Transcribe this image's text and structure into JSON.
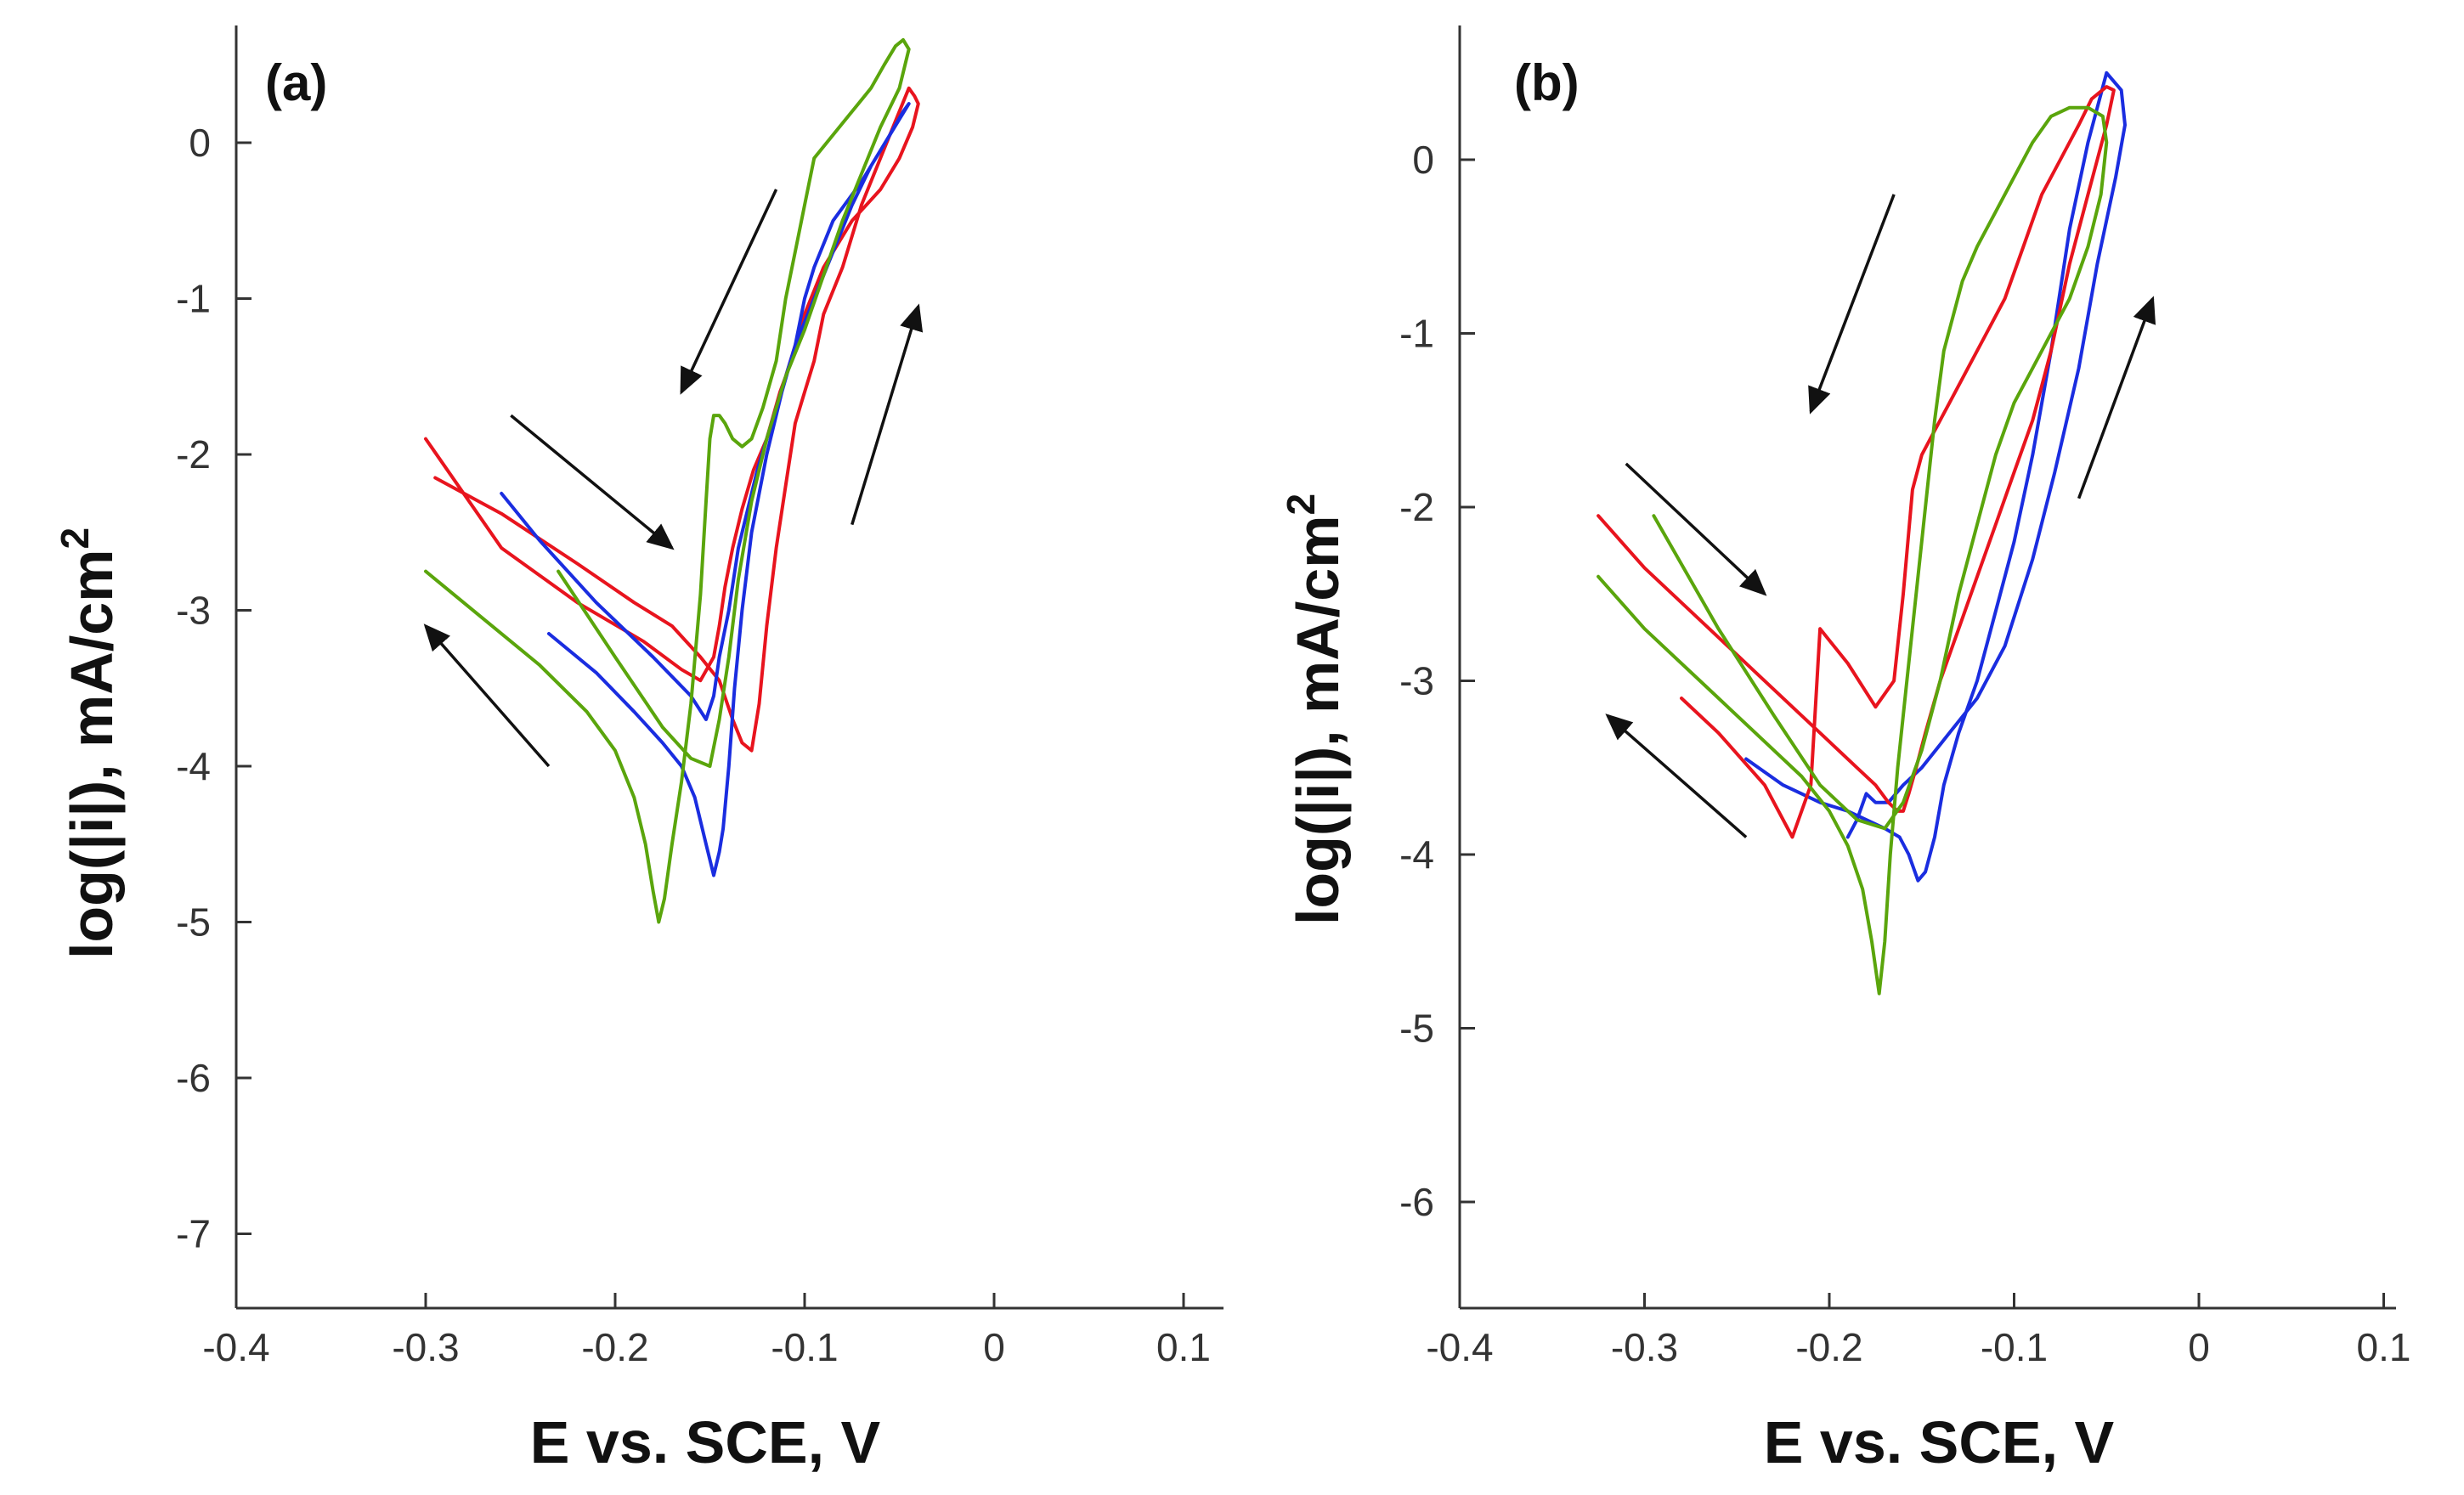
{
  "chart_data": [
    {
      "type": "line",
      "panel_label": "(a)",
      "xlabel": "E vs. SCE, V",
      "ylabel": "log(|i|), mA/cm",
      "ylabel_superscript": "2",
      "xlim": [
        -0.4,
        0.12
      ],
      "ylim": [
        -7.5,
        0.7
      ],
      "xticks": [
        -0.4,
        -0.3,
        -0.2,
        -0.1,
        0,
        0.1
      ],
      "xtick_labels": [
        "-0.4",
        "-0.3",
        "-0.2",
        "-0.1",
        "0",
        "0.1"
      ],
      "yticks": [
        0,
        -1,
        -2,
        -3,
        -4,
        -5,
        -6,
        -7
      ],
      "ytick_labels": [
        "0",
        "-1",
        "-2",
        "-3",
        "-4",
        "-5",
        "-6",
        "-7"
      ],
      "grid": false,
      "series": [
        {
          "color": "#e8141e",
          "x": [
            -0.295,
            -0.26,
            -0.22,
            -0.19,
            -0.17,
            -0.155,
            -0.145,
            -0.138,
            -0.133,
            -0.128,
            -0.124,
            -0.12,
            -0.115,
            -0.11,
            -0.105,
            -0.1,
            -0.095,
            -0.09,
            -0.08,
            -0.07,
            -0.06,
            -0.05,
            -0.045,
            -0.042,
            -0.04,
            -0.043,
            -0.05,
            -0.06,
            -0.075,
            -0.09,
            -0.1,
            -0.105,
            -0.11,
            -0.113,
            -0.12,
            -0.127,
            -0.133,
            -0.138,
            -0.142,
            -0.145,
            -0.148,
            -0.155,
            -0.165,
            -0.185,
            -0.22,
            -0.26,
            -0.3
          ],
          "y": [
            -2.15,
            -2.38,
            -2.7,
            -2.95,
            -3.1,
            -3.3,
            -3.45,
            -3.7,
            -3.85,
            -3.9,
            -3.6,
            -3.1,
            -2.6,
            -2.2,
            -1.8,
            -1.6,
            -1.4,
            -1.1,
            -0.8,
            -0.4,
            -0.1,
            0.2,
            0.35,
            0.3,
            0.25,
            0.1,
            -0.1,
            -0.3,
            -0.5,
            -0.8,
            -1.1,
            -1.3,
            -1.5,
            -1.6,
            -1.9,
            -2.1,
            -2.35,
            -2.6,
            -2.85,
            -3.1,
            -3.3,
            -3.45,
            -3.38,
            -3.2,
            -2.95,
            -2.6,
            -1.9
          ]
        },
        {
          "color": "#1a2de0",
          "x": [
            -0.235,
            -0.21,
            -0.19,
            -0.175,
            -0.165,
            -0.158,
            -0.152,
            -0.148,
            -0.145,
            -0.143,
            -0.14,
            -0.137,
            -0.133,
            -0.128,
            -0.12,
            -0.112,
            -0.105,
            -0.1,
            -0.095,
            -0.085,
            -0.07,
            -0.06,
            -0.05,
            -0.045,
            -0.048,
            -0.055,
            -0.065,
            -0.075,
            -0.085,
            -0.095,
            -0.105,
            -0.115,
            -0.125,
            -0.135,
            -0.14,
            -0.145,
            -0.148,
            -0.152,
            -0.16,
            -0.18,
            -0.21,
            -0.24,
            -0.26
          ],
          "y": [
            -3.15,
            -3.4,
            -3.65,
            -3.85,
            -4.0,
            -4.2,
            -4.5,
            -4.7,
            -4.55,
            -4.4,
            -4.0,
            -3.5,
            -3.0,
            -2.5,
            -2.0,
            -1.6,
            -1.3,
            -1.0,
            -0.8,
            -0.5,
            -0.25,
            -0.05,
            0.15,
            0.25,
            0.2,
            0.05,
            -0.15,
            -0.4,
            -0.7,
            -1.0,
            -1.3,
            -1.7,
            -2.1,
            -2.6,
            -3.0,
            -3.3,
            -3.55,
            -3.7,
            -3.55,
            -3.3,
            -2.95,
            -2.55,
            -2.25
          ]
        },
        {
          "color": "#5aa50c",
          "x": [
            -0.3,
            -0.27,
            -0.24,
            -0.215,
            -0.2,
            -0.19,
            -0.184,
            -0.18,
            -0.177,
            -0.174,
            -0.17,
            -0.165,
            -0.16,
            -0.155,
            -0.152,
            -0.15,
            -0.148,
            -0.145,
            -0.142,
            -0.138,
            -0.133,
            -0.128,
            -0.122,
            -0.115,
            -0.11,
            -0.105,
            -0.1,
            -0.095,
            -0.085,
            -0.075,
            -0.065,
            -0.058,
            -0.052,
            -0.048,
            -0.045,
            -0.05,
            -0.06,
            -0.07,
            -0.08,
            -0.09,
            -0.1,
            -0.11,
            -0.115,
            -0.12,
            -0.128,
            -0.135,
            -0.14,
            -0.145,
            -0.15,
            -0.16,
            -0.175,
            -0.2,
            -0.23
          ],
          "y": [
            -2.75,
            -3.05,
            -3.35,
            -3.65,
            -3.9,
            -4.2,
            -4.5,
            -4.8,
            -5.0,
            -4.85,
            -4.5,
            -4.1,
            -3.6,
            -2.9,
            -2.3,
            -1.9,
            -1.75,
            -1.75,
            -1.8,
            -1.9,
            -1.95,
            -1.9,
            -1.7,
            -1.4,
            -1.0,
            -0.7,
            -0.4,
            -0.1,
            0.05,
            0.2,
            0.35,
            0.5,
            0.62,
            0.66,
            0.6,
            0.35,
            0.1,
            -0.2,
            -0.5,
            -0.85,
            -1.2,
            -1.5,
            -1.7,
            -1.9,
            -2.3,
            -2.8,
            -3.3,
            -3.7,
            -4.0,
            -3.95,
            -3.75,
            -3.3,
            -2.75
          ]
        }
      ],
      "annotations": [
        {
          "type": "arrow",
          "from": [
            -0.235,
            -4.0
          ],
          "to": [
            -0.3,
            -3.1
          ]
        },
        {
          "type": "arrow",
          "from": [
            -0.255,
            -1.75
          ],
          "to": [
            -0.17,
            -2.6
          ]
        },
        {
          "type": "arrow",
          "from": [
            -0.115,
            -0.3
          ],
          "to": [
            -0.165,
            -1.6
          ]
        },
        {
          "type": "arrow",
          "from": [
            -0.075,
            -2.45
          ],
          "to": [
            -0.04,
            -1.05
          ]
        }
      ]
    },
    {
      "type": "line",
      "panel_label": "(b)",
      "xlabel": "E vs. SCE, V",
      "ylabel": "log(|i|), mA/cm",
      "ylabel_superscript": "2",
      "xlim": [
        -0.4,
        0.12
      ],
      "ylim": [
        -6.6,
        0.7
      ],
      "xticks": [
        -0.4,
        -0.3,
        -0.2,
        -0.1,
        0,
        0.1
      ],
      "xtick_labels": [
        "-0.4",
        "-0.3",
        "-0.2",
        "-0.1",
        "0",
        "0.1"
      ],
      "yticks": [
        0,
        -1,
        -2,
        -3,
        -4,
        -5,
        -6
      ],
      "ytick_labels": [
        "0",
        "-1",
        "-2",
        "-3",
        "-4",
        "-5",
        "-6"
      ],
      "grid": false,
      "series": [
        {
          "color": "#1a2de0",
          "x": [
            -0.245,
            -0.225,
            -0.205,
            -0.19,
            -0.18,
            -0.17,
            -0.162,
            -0.157,
            -0.152,
            -0.148,
            -0.143,
            -0.138,
            -0.13,
            -0.12,
            -0.11,
            -0.1,
            -0.09,
            -0.08,
            -0.07,
            -0.06,
            -0.05,
            -0.042,
            -0.04,
            -0.045,
            -0.055,
            -0.065,
            -0.078,
            -0.09,
            -0.105,
            -0.12,
            -0.135,
            -0.15,
            -0.16,
            -0.168,
            -0.175,
            -0.18,
            -0.185,
            -0.19
          ],
          "y": [
            -3.45,
            -3.6,
            -3.7,
            -3.75,
            -3.8,
            -3.85,
            -3.9,
            -4.0,
            -4.15,
            -4.1,
            -3.9,
            -3.6,
            -3.3,
            -3.0,
            -2.6,
            -2.2,
            -1.7,
            -1.1,
            -0.4,
            0.1,
            0.5,
            0.4,
            0.2,
            -0.1,
            -0.6,
            -1.2,
            -1.8,
            -2.3,
            -2.8,
            -3.1,
            -3.3,
            -3.5,
            -3.6,
            -3.7,
            -3.7,
            -3.65,
            -3.8,
            -3.9
          ]
        },
        {
          "color": "#e8141e",
          "x": [
            -0.325,
            -0.3,
            -0.27,
            -0.24,
            -0.215,
            -0.2,
            -0.185,
            -0.175,
            -0.168,
            -0.163,
            -0.16,
            -0.157,
            -0.153,
            -0.148,
            -0.14,
            -0.13,
            -0.12,
            -0.11,
            -0.1,
            -0.09,
            -0.08,
            -0.07,
            -0.06,
            -0.05,
            -0.046,
            -0.05,
            -0.058,
            -0.065,
            -0.075,
            -0.085,
            -0.095,
            -0.105,
            -0.115,
            -0.125,
            -0.135,
            -0.145,
            -0.15,
            -0.155,
            -0.16,
            -0.165,
            -0.175,
            -0.19,
            -0.205,
            -0.21,
            -0.22,
            -0.235,
            -0.26,
            -0.28
          ],
          "y": [
            -2.05,
            -2.35,
            -2.65,
            -2.95,
            -3.2,
            -3.35,
            -3.5,
            -3.6,
            -3.7,
            -3.75,
            -3.75,
            -3.65,
            -3.5,
            -3.3,
            -3.0,
            -2.7,
            -2.4,
            -2.1,
            -1.8,
            -1.5,
            -1.1,
            -0.6,
            -0.2,
            0.2,
            0.4,
            0.42,
            0.35,
            0.2,
            0.0,
            -0.2,
            -0.5,
            -0.8,
            -1.0,
            -1.2,
            -1.4,
            -1.6,
            -1.7,
            -1.9,
            -2.5,
            -3.0,
            -3.15,
            -2.9,
            -2.7,
            -3.6,
            -3.9,
            -3.6,
            -3.3,
            -3.1
          ]
        },
        {
          "color": "#5aa50c",
          "x": [
            -0.325,
            -0.3,
            -0.27,
            -0.24,
            -0.215,
            -0.2,
            -0.19,
            -0.182,
            -0.177,
            -0.173,
            -0.17,
            -0.167,
            -0.163,
            -0.158,
            -0.153,
            -0.148,
            -0.143,
            -0.138,
            -0.133,
            -0.128,
            -0.12,
            -0.11,
            -0.1,
            -0.09,
            -0.08,
            -0.07,
            -0.06,
            -0.052,
            -0.05,
            -0.053,
            -0.06,
            -0.07,
            -0.08,
            -0.09,
            -0.1,
            -0.11,
            -0.12,
            -0.13,
            -0.14,
            -0.15,
            -0.16,
            -0.17,
            -0.185,
            -0.205,
            -0.23,
            -0.26,
            -0.295
          ],
          "y": [
            -2.4,
            -2.7,
            -3.0,
            -3.3,
            -3.55,
            -3.75,
            -3.95,
            -4.2,
            -4.5,
            -4.8,
            -4.5,
            -4.0,
            -3.5,
            -3.0,
            -2.5,
            -2.0,
            -1.5,
            -1.1,
            -0.9,
            -0.7,
            -0.5,
            -0.3,
            -0.1,
            0.1,
            0.25,
            0.3,
            0.3,
            0.25,
            0.1,
            -0.2,
            -0.5,
            -0.8,
            -1.0,
            -1.2,
            -1.4,
            -1.7,
            -2.1,
            -2.5,
            -3.0,
            -3.4,
            -3.7,
            -3.85,
            -3.8,
            -3.6,
            -3.2,
            -2.7,
            -2.05
          ]
        }
      ],
      "annotations": [
        {
          "type": "arrow",
          "from": [
            -0.245,
            -3.9
          ],
          "to": [
            -0.32,
            -3.2
          ]
        },
        {
          "type": "arrow",
          "from": [
            -0.31,
            -1.75
          ],
          "to": [
            -0.235,
            -2.5
          ]
        },
        {
          "type": "arrow",
          "from": [
            -0.165,
            -0.2
          ],
          "to": [
            -0.21,
            -1.45
          ]
        },
        {
          "type": "arrow",
          "from": [
            -0.065,
            -1.95
          ],
          "to": [
            -0.025,
            -0.8
          ]
        }
      ]
    }
  ]
}
